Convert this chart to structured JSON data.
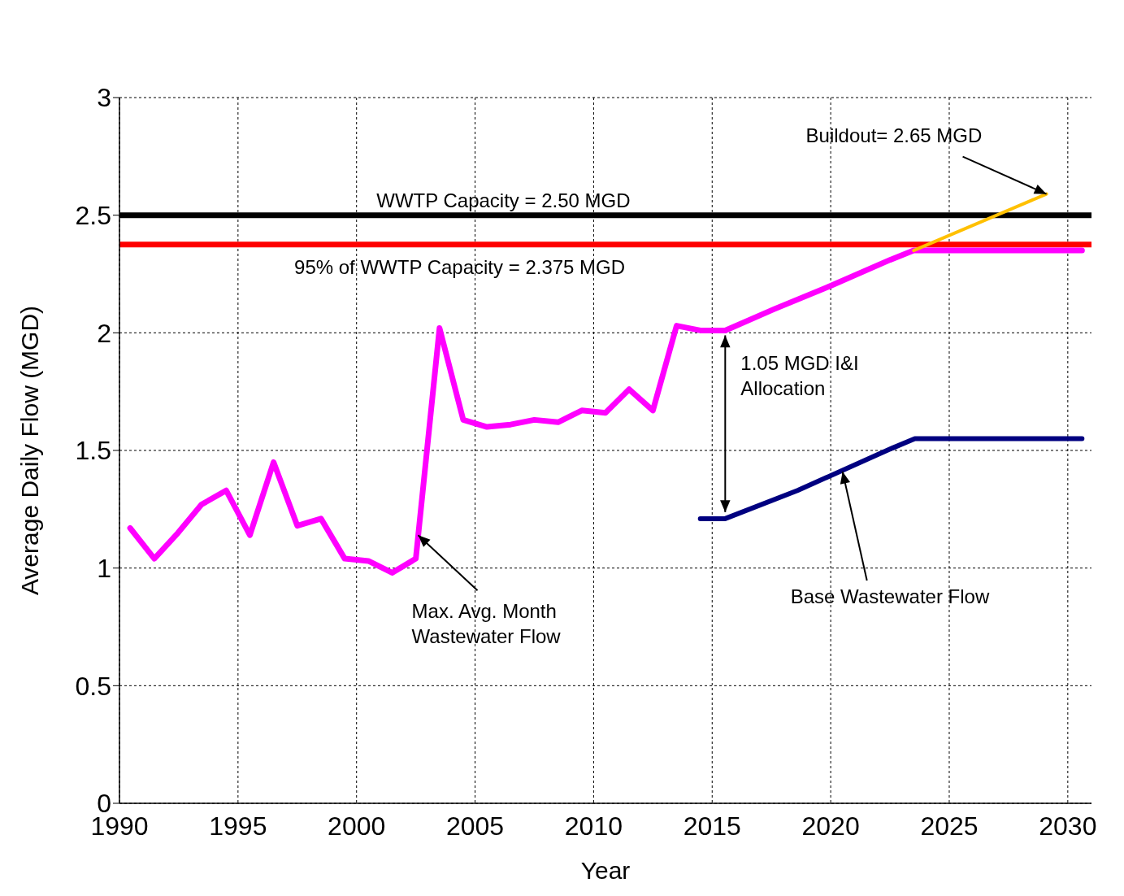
{
  "chart_data": {
    "type": "line",
    "xlabel": "Year",
    "ylabel": "Average Daily Flow (MGD)",
    "xlim": [
      1990,
      2031
    ],
    "xticks": [
      1990,
      1995,
      2000,
      2005,
      2010,
      2015,
      2020,
      2025,
      2030
    ],
    "ylim": [
      0,
      3
    ],
    "yticks": [
      0,
      0.5,
      1,
      1.5,
      2,
      2.5,
      3
    ],
    "grid": true,
    "marker": "none",
    "line_style": "solid",
    "series": [
      {
        "color": "#ff00ff",
        "x": [
          1990.45,
          1991.47,
          1992.47,
          1993.46,
          1994.5,
          1995.5,
          1996.5,
          1997.5,
          1998.5,
          1999.5,
          2000.5,
          2001.5,
          2002.5,
          2003.5,
          2004.5,
          2005.5,
          2006.5,
          2007.5,
          2008.5,
          2009.5,
          2010.5,
          2011.5,
          2012.5,
          2013.5,
          2014.5,
          2015.55,
          2017.6,
          2020,
          2022.5,
          2023.5,
          2030.6
        ],
        "values": [
          1.17,
          1.04,
          1.15,
          1.27,
          1.33,
          1.14,
          1.45,
          1.18,
          1.21,
          1.04,
          1.03,
          0.98,
          1.04,
          2.02,
          1.63,
          1.6,
          1.61,
          1.63,
          1.62,
          1.67,
          1.66,
          1.76,
          1.67,
          2.03,
          2.01,
          2.01,
          2.1,
          2.2,
          2.31,
          2.35,
          2.35
        ]
      },
      {
        "color": "#000080",
        "x": [
          2014.5,
          2015.55,
          2018.6,
          2022.6,
          2023.55,
          2030.6
        ],
        "values": [
          1.21,
          1.21,
          1.33,
          1.51,
          1.55,
          1.55
        ]
      },
      {
        "color": "#ffc000",
        "x": [
          2023.5,
          2029.1
        ],
        "values": [
          2.35,
          2.59
        ]
      }
    ],
    "ref_lines": [
      {
        "axis": "y",
        "value": 2.5,
        "label": "WWTP Capacity = 2.50 MGD",
        "color": "#000000"
      },
      {
        "axis": "y",
        "value": 2.375,
        "label": "95% of WWTP Capacity = 2.375 MGD",
        "color": "#ff0000"
      }
    ],
    "annotations": [
      {
        "text": "Max. Avg. Month Wastewater Flow",
        "x": 2002.6,
        "y": 1.14
      },
      {
        "text": "Base Wastewater Flow",
        "x": 2020.5,
        "y": 1.41
      },
      {
        "text": "Buildout= 2.65 MGD",
        "x": 2029.1,
        "y": 2.59
      },
      {
        "text": "1.05 MGD I&I Allocation",
        "x": 2015.55,
        "y": 2.01
      }
    ]
  }
}
